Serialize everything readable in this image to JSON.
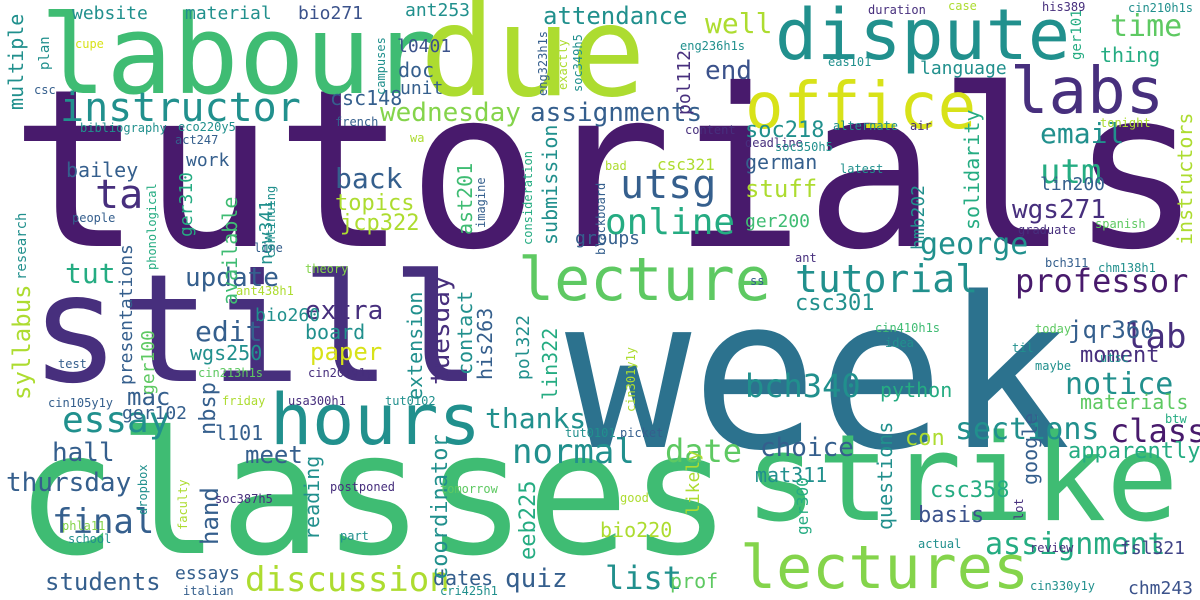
{
  "colors": {
    "dark_purple": "#481a6c",
    "purple": "#472f7d",
    "indigo": "#414487",
    "slate_blue": "#3b528b",
    "steel_blue": "#355f8d",
    "teal_blue": "#2c728e",
    "teal": "#21908d",
    "sea_green": "#25ac82",
    "green": "#3fbc73",
    "light_green": "#5ec962",
    "lime": "#84d44b",
    "yellow_green": "#addc30",
    "yellow": "#d8e219"
  },
  "words": [
    {
      "text": "tutorials",
      "color": "dark_purple"
    },
    {
      "text": "week",
      "color": "teal_blue"
    },
    {
      "text": "classes",
      "color": "green"
    },
    {
      "text": "still",
      "color": "purple"
    },
    {
      "text": "strike",
      "color": "green"
    },
    {
      "text": "labour",
      "color": "green"
    },
    {
      "text": "due",
      "color": "yellow_green"
    },
    {
      "text": "dispute",
      "color": "teal"
    },
    {
      "text": "labs",
      "color": "purple"
    },
    {
      "text": "office",
      "color": "yellow"
    },
    {
      "text": "hours",
      "color": "teal"
    },
    {
      "text": "instructor",
      "color": "teal"
    },
    {
      "text": "lectures",
      "color": "lime"
    },
    {
      "text": "lecture",
      "color": "light_green"
    },
    {
      "text": "tutorial",
      "color": "teal"
    },
    {
      "text": "professor",
      "color": "dark_purple"
    },
    {
      "text": "discussion",
      "color": "yellow_green"
    },
    {
      "text": "utsg",
      "color": "steel_blue"
    },
    {
      "text": "online",
      "color": "sea_green"
    },
    {
      "text": "ta",
      "color": "purple"
    },
    {
      "text": "essay",
      "color": "teal"
    },
    {
      "text": "final",
      "color": "steel_blue"
    },
    {
      "text": "date",
      "color": "light_green"
    },
    {
      "text": "normal",
      "color": "teal"
    },
    {
      "text": "assignment",
      "color": "sea_green"
    },
    {
      "text": "assignments",
      "color": "steel_blue"
    },
    {
      "text": "attendance",
      "color": "teal"
    },
    {
      "text": "notice",
      "color": "teal"
    },
    {
      "text": "class",
      "color": "dark_purple"
    },
    {
      "text": "lab",
      "color": "purple"
    },
    {
      "text": "sections",
      "color": "teal"
    },
    {
      "text": "wednesday",
      "color": "lime"
    },
    {
      "text": "george",
      "color": "teal"
    },
    {
      "text": "utm",
      "color": "sea_green"
    },
    {
      "text": "email",
      "color": "teal"
    },
    {
      "text": "time",
      "color": "light_green"
    },
    {
      "text": "end",
      "color": "slate_blue"
    },
    {
      "text": "well",
      "color": "yellow_green"
    },
    {
      "text": "back",
      "color": "steel_blue"
    },
    {
      "text": "tut",
      "color": "sea_green"
    },
    {
      "text": "update",
      "color": "steel_blue"
    },
    {
      "text": "edit",
      "color": "steel_blue"
    },
    {
      "text": "bch340",
      "color": "teal"
    },
    {
      "text": "choice",
      "color": "steel_blue"
    },
    {
      "text": "thanks",
      "color": "teal"
    },
    {
      "text": "students",
      "color": "steel_blue"
    },
    {
      "text": "list",
      "color": "teal"
    },
    {
      "text": "quiz",
      "color": "steel_blue"
    },
    {
      "text": "hall",
      "color": "steel_blue"
    },
    {
      "text": "thursday",
      "color": "steel_blue"
    },
    {
      "text": "syllabus",
      "color": "yellow_green"
    },
    {
      "text": "tuesday",
      "color": "purple"
    },
    {
      "text": "paper",
      "color": "yellow"
    },
    {
      "text": "extra",
      "color": "purple"
    },
    {
      "text": "board",
      "color": "teal"
    },
    {
      "text": "topics",
      "color": "yellow_green"
    },
    {
      "text": "jcp322",
      "color": "yellow_green"
    },
    {
      "text": "wgs271",
      "color": "purple"
    },
    {
      "text": "csc301",
      "color": "teal"
    },
    {
      "text": "jqr360",
      "color": "steel_blue"
    },
    {
      "text": "moment",
      "color": "purple"
    },
    {
      "text": "materials",
      "color": "light_green"
    },
    {
      "text": "apparently",
      "color": "sea_green"
    },
    {
      "text": "con",
      "color": "yellow_green"
    },
    {
      "text": "google",
      "color": "steel_blue"
    },
    {
      "text": "basis",
      "color": "slate_blue"
    },
    {
      "text": "csc358",
      "color": "sea_green"
    },
    {
      "text": "mat311",
      "color": "teal"
    },
    {
      "text": "bio220",
      "color": "yellow_green"
    },
    {
      "text": "essays",
      "color": "steel_blue"
    },
    {
      "text": "dates",
      "color": "steel_blue"
    },
    {
      "text": "prof",
      "color": "light_green"
    },
    {
      "text": "chm243",
      "color": "slate_blue"
    },
    {
      "text": "fsl321",
      "color": "indigo"
    },
    {
      "text": "eeb225",
      "color": "sea_green"
    },
    {
      "text": "reading",
      "color": "teal"
    },
    {
      "text": "coordinator",
      "color": "teal"
    },
    {
      "text": "meet",
      "color": "steel_blue"
    },
    {
      "text": "hand",
      "color": "steel_blue"
    },
    {
      "text": "l101",
      "color": "steel_blue"
    },
    {
      "text": "nbsp",
      "color": "steel_blue"
    },
    {
      "text": "mac",
      "color": "steel_blue"
    },
    {
      "text": "ger102",
      "color": "steel_blue"
    },
    {
      "text": "ger100",
      "color": "light_green"
    },
    {
      "text": "wgs250",
      "color": "teal"
    },
    {
      "text": "bio260",
      "color": "teal"
    },
    {
      "text": "new341",
      "color": "teal"
    },
    {
      "text": "presentations",
      "color": "steel_blue"
    },
    {
      "text": "available",
      "color": "green"
    },
    {
      "text": "ger310",
      "color": "sea_green"
    },
    {
      "text": "work",
      "color": "steel_blue"
    },
    {
      "text": "bailey",
      "color": "steel_blue"
    },
    {
      "text": "csc148",
      "color": "steel_blue"
    },
    {
      "text": "doc",
      "color": "steel_blue"
    },
    {
      "text": "unit",
      "color": "steel_blue"
    },
    {
      "text": "l0401",
      "color": "slate_blue"
    },
    {
      "text": "bio271",
      "color": "slate_blue"
    },
    {
      "text": "material",
      "color": "teal"
    },
    {
      "text": "website",
      "color": "teal"
    },
    {
      "text": "ant253",
      "color": "teal"
    },
    {
      "text": "multiple",
      "color": "teal"
    },
    {
      "text": "plan",
      "color": "teal"
    },
    {
      "text": "cupe",
      "color": "yellow"
    },
    {
      "text": "csc",
      "color": "steel_blue"
    },
    {
      "text": "bibliography",
      "color": "teal"
    },
    {
      "text": "act247",
      "color": "steel_blue"
    },
    {
      "text": "eco220y5",
      "color": "teal"
    },
    {
      "text": "french",
      "color": "steel_blue"
    },
    {
      "text": "wa",
      "color": "yellow_green"
    },
    {
      "text": "research",
      "color": "teal"
    },
    {
      "text": "people",
      "color": "steel_blue"
    },
    {
      "text": "phonological",
      "color": "sea_green"
    },
    {
      "text": "line",
      "color": "steel_blue"
    },
    {
      "text": "continuing",
      "color": "teal"
    },
    {
      "text": "theory",
      "color": "lime"
    },
    {
      "text": "ant438h1",
      "color": "yellow_green"
    },
    {
      "text": "test",
      "color": "steel_blue"
    },
    {
      "text": "cin213h1s",
      "color": "light_green"
    },
    {
      "text": "cin201y1y",
      "color": "purple"
    },
    {
      "text": "cin105y1y",
      "color": "steel_blue"
    },
    {
      "text": "friday",
      "color": "yellow_green"
    },
    {
      "text": "usa300h1",
      "color": "purple"
    },
    {
      "text": "tut0102",
      "color": "teal"
    },
    {
      "text": "tut0101",
      "color": "teal"
    },
    {
      "text": "picket",
      "color": "steel_blue"
    },
    {
      "text": "cin301y1y",
      "color": "yellow_green"
    },
    {
      "text": "tomorrow",
      "color": "light_green"
    },
    {
      "text": "postponed",
      "color": "purple"
    },
    {
      "text": "soc387h5",
      "color": "purple"
    },
    {
      "text": "dropbox",
      "color": "teal"
    },
    {
      "text": "faculty",
      "color": "yellow_green"
    },
    {
      "text": "phla11",
      "color": "lime"
    },
    {
      "text": "school",
      "color": "teal"
    },
    {
      "text": "part",
      "color": "teal"
    },
    {
      "text": "italian",
      "color": "steel_blue"
    },
    {
      "text": "cri425h1",
      "color": "teal"
    },
    {
      "text": "cin330y1y",
      "color": "teal"
    },
    {
      "text": "actual",
      "color": "teal"
    },
    {
      "text": "review",
      "color": "purple"
    },
    {
      "text": "lot",
      "color": "purple"
    },
    {
      "text": "btw",
      "color": "sea_green"
    },
    {
      "text": "utsc",
      "color": "teal"
    },
    {
      "text": "maybe",
      "color": "teal"
    },
    {
      "text": "idea",
      "color": "teal"
    },
    {
      "text": "til",
      "color": "teal"
    },
    {
      "text": "today",
      "color": "light_green"
    },
    {
      "text": "ger300",
      "color": "sea_green"
    },
    {
      "text": "good",
      "color": "yellow_green"
    },
    {
      "text": "ss",
      "color": "steel_blue"
    },
    {
      "text": "ant",
      "color": "purple"
    },
    {
      "text": "cin410h1s",
      "color": "green"
    },
    {
      "text": "chm138h1",
      "color": "teal"
    },
    {
      "text": "bch311",
      "color": "steel_blue"
    },
    {
      "text": "graduate",
      "color": "purple"
    },
    {
      "text": "spanish",
      "color": "light_green"
    },
    {
      "text": "ger200",
      "color": "green"
    },
    {
      "text": "hmb202",
      "color": "teal"
    },
    {
      "text": "lin200",
      "color": "steel_blue"
    },
    {
      "text": "solidarity",
      "color": "sea_green"
    },
    {
      "text": "instructors",
      "color": "yellow_green"
    },
    {
      "text": "groups",
      "color": "steel_blue"
    },
    {
      "text": "blackboard",
      "color": "steel_blue"
    },
    {
      "text": "imagine",
      "color": "steel_blue"
    },
    {
      "text": "consideration",
      "color": "sea_green"
    },
    {
      "text": "submission",
      "color": "teal"
    },
    {
      "text": "ast201",
      "color": "green"
    },
    {
      "text": "his263",
      "color": "steel_blue"
    },
    {
      "text": "contact",
      "color": "teal"
    },
    {
      "text": "extension",
      "color": "teal"
    },
    {
      "text": "pol322",
      "color": "teal"
    },
    {
      "text": "lin322",
      "color": "sea_green"
    },
    {
      "text": "python",
      "color": "sea_green"
    },
    {
      "text": "likely",
      "color": "yellow_green"
    },
    {
      "text": "questions",
      "color": "teal"
    },
    {
      "text": "csc321",
      "color": "yellow_green"
    },
    {
      "text": "german",
      "color": "steel_blue"
    },
    {
      "text": "stuff",
      "color": "yellow_green"
    },
    {
      "text": "soc218",
      "color": "teal"
    },
    {
      "text": "deadline",
      "color": "purple"
    },
    {
      "text": "latest",
      "color": "teal"
    },
    {
      "text": "bad",
      "color": "yellow_green"
    },
    {
      "text": "content",
      "color": "purple"
    },
    {
      "text": "alternate",
      "color": "teal"
    },
    {
      "text": "air",
      "color": "purple"
    },
    {
      "text": "soc350h5",
      "color": "teal"
    },
    {
      "text": "eas101",
      "color": "teal"
    },
    {
      "text": "language",
      "color": "teal"
    },
    {
      "text": "thing",
      "color": "sea_green"
    },
    {
      "text": "ger101",
      "color": "sea_green"
    },
    {
      "text": "duration",
      "color": "purple"
    },
    {
      "text": "case",
      "color": "yellow_green"
    },
    {
      "text": "his389",
      "color": "purple"
    },
    {
      "text": "cin210h1s",
      "color": "teal"
    },
    {
      "text": "eng236h1s",
      "color": "teal"
    },
    {
      "text": "pol112",
      "color": "purple"
    },
    {
      "text": "exactly",
      "color": "yellow_green"
    },
    {
      "text": "soc349h5",
      "color": "teal"
    },
    {
      "text": "eng323h1s",
      "color": "steel_blue"
    },
    {
      "text": "campuses",
      "color": "teal"
    },
    {
      "text": "tonight",
      "color": "yellow_green"
    }
  ]
}
